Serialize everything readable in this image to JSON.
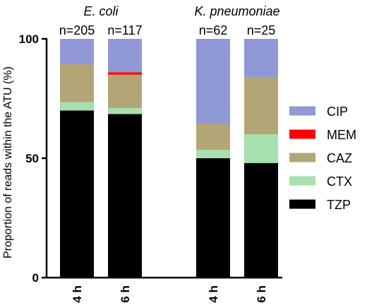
{
  "chart_data": {
    "type": "bar",
    "stacked": true,
    "ylabel": "Proportion of reads within the ATU (%)",
    "ylim": [
      0,
      100
    ],
    "yticks": [
      0,
      50,
      100
    ],
    "groups": [
      {
        "title": "E. coli",
        "bars": [
          {
            "x_label": "4 h",
            "n_label": "n=205"
          },
          {
            "x_label": "6 h",
            "n_label": "n=117"
          }
        ]
      },
      {
        "title": "K. pneumoniae",
        "bars": [
          {
            "x_label": "4 h",
            "n_label": "n=62"
          },
          {
            "x_label": "6 h",
            "n_label": "n=25"
          }
        ]
      }
    ],
    "series": [
      {
        "name": "TZP",
        "color": "#000000",
        "values": [
          70,
          68.5,
          50,
          48
        ]
      },
      {
        "name": "CTX",
        "color": "#a8e0b0",
        "values": [
          3.5,
          2.5,
          3.5,
          12
        ]
      },
      {
        "name": "CAZ",
        "color": "#b3a676",
        "values": [
          16,
          14,
          11,
          24
        ]
      },
      {
        "name": "MEM",
        "color": "#ff0000",
        "values": [
          0,
          1,
          0,
          0
        ]
      },
      {
        "name": "CIP",
        "color": "#9198d6",
        "values": [
          10.5,
          14,
          35.5,
          16
        ]
      }
    ],
    "legend": {
      "position": "right",
      "order": [
        "CIP",
        "MEM",
        "CAZ",
        "CTX",
        "TZP"
      ]
    }
  }
}
